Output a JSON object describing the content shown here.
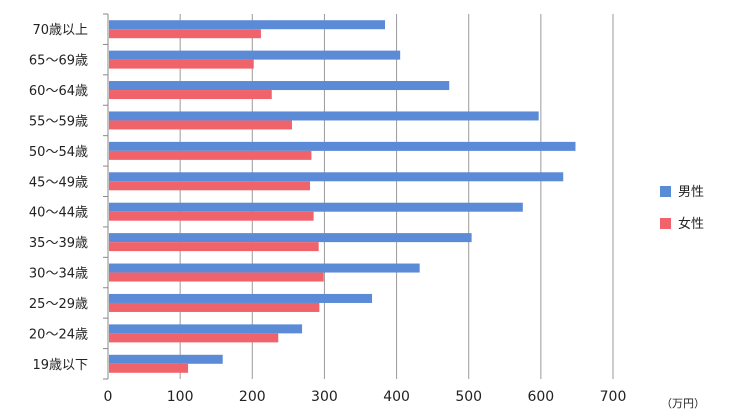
{
  "chart_data": {
    "type": "bar",
    "orientation": "horizontal",
    "categories": [
      "70歳以上",
      "65〜69歳",
      "60〜64歳",
      "55〜59歳",
      "50〜54歳",
      "45〜49歳",
      "40〜44歳",
      "35〜39歳",
      "30〜34歳",
      "25〜29歳",
      "20〜24歳",
      "19歳以下"
    ],
    "series": [
      {
        "name": "男性",
        "color": "#5b8ad6",
        "values": [
          384,
          405,
          473,
          597,
          648,
          631,
          575,
          504,
          432,
          366,
          269,
          159
        ]
      },
      {
        "name": "女性",
        "color": "#f0636b",
        "values": [
          212,
          202,
          227,
          255,
          282,
          280,
          285,
          292,
          299,
          293,
          236,
          111
        ]
      }
    ],
    "x_ticks": [
      "0",
      "100",
      "200",
      "300",
      "400",
      "500",
      "600",
      "700"
    ],
    "xlim": [
      0,
      700
    ],
    "unit_label": "（万円）",
    "grid": true,
    "legend_position": "right"
  }
}
